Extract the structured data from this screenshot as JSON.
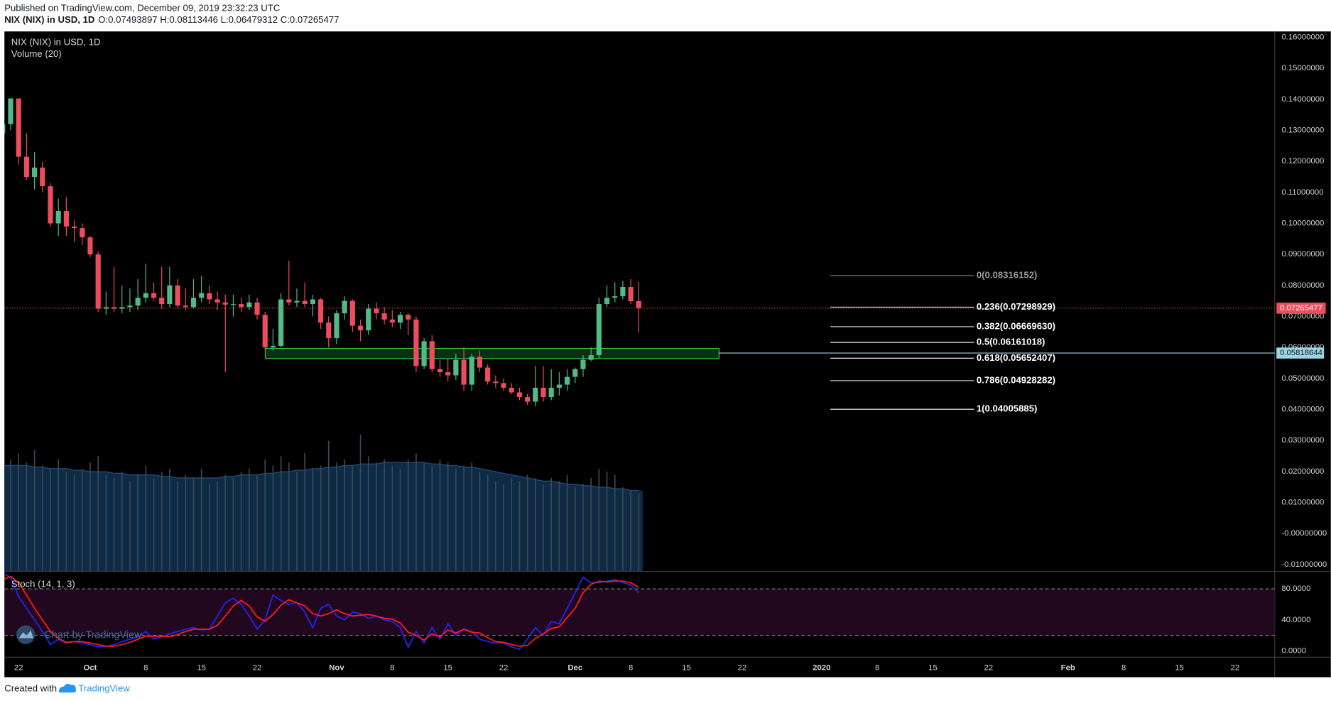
{
  "header": {
    "published": "Published on TradingView.com, December 09, 2019 23:32:23 UTC",
    "ohlc": "O:0.07493897 H:0.08113446 L:0.06479312 C:0.07265477"
  },
  "watermark": "Chart by TradingView",
  "footer": {
    "created": "Created with",
    "brand": "TradingView"
  },
  "chart_data": [
    {
      "type": "candlestick",
      "title": "NIX (NIX) in USD, 1D",
      "up_color": "#53b987",
      "down_color": "#eb4d5c",
      "x": [
        "2019-09-20",
        "2019-09-21",
        "2019-09-22",
        "2019-09-23",
        "2019-09-24",
        "2019-09-25",
        "2019-09-26",
        "2019-09-27",
        "2019-09-28",
        "2019-09-29",
        "2019-09-30",
        "2019-10-01",
        "2019-10-02",
        "2019-10-03",
        "2019-10-04",
        "2019-10-05",
        "2019-10-06",
        "2019-10-07",
        "2019-10-08",
        "2019-10-09",
        "2019-10-10",
        "2019-10-11",
        "2019-10-12",
        "2019-10-13",
        "2019-10-14",
        "2019-10-15",
        "2019-10-16",
        "2019-10-17",
        "2019-10-18",
        "2019-10-19",
        "2019-10-20",
        "2019-10-21",
        "2019-10-22",
        "2019-10-23",
        "2019-10-24",
        "2019-10-25",
        "2019-10-26",
        "2019-10-27",
        "2019-10-28",
        "2019-10-29",
        "2019-10-30",
        "2019-10-31",
        "2019-11-01",
        "2019-11-02",
        "2019-11-03",
        "2019-11-04",
        "2019-11-05",
        "2019-11-06",
        "2019-11-07",
        "2019-11-08",
        "2019-11-09",
        "2019-11-10",
        "2019-11-11",
        "2019-11-12",
        "2019-11-13",
        "2019-11-14",
        "2019-11-15",
        "2019-11-16",
        "2019-11-17",
        "2019-11-18",
        "2019-11-19",
        "2019-11-20",
        "2019-11-21",
        "2019-11-22",
        "2019-11-23",
        "2019-11-24",
        "2019-11-25",
        "2019-11-26",
        "2019-11-27",
        "2019-11-28",
        "2019-11-29",
        "2019-11-30",
        "2019-12-01",
        "2019-12-02",
        "2019-12-03",
        "2019-12-04",
        "2019-12-05",
        "2019-12-06",
        "2019-12-07",
        "2019-12-08",
        "2019-12-09"
      ],
      "open": [
        0.129,
        0.132,
        0.1403,
        0.1215,
        0.115,
        0.118,
        0.112,
        0.1,
        0.104,
        0.099,
        0.0985,
        0.0955,
        0.09,
        0.0725,
        0.073,
        0.0725,
        0.073,
        0.0735,
        0.076,
        0.0775,
        0.076,
        0.074,
        0.08,
        0.0735,
        0.073,
        0.076,
        0.0775,
        0.0755,
        0.0745,
        0.0738,
        0.074,
        0.073,
        0.0745,
        0.0705,
        0.06,
        0.0605,
        0.0755,
        0.0745,
        0.075,
        0.074,
        0.0755,
        0.068,
        0.063,
        0.071,
        0.075,
        0.067,
        0.0655,
        0.0725,
        0.071,
        0.069,
        0.068,
        0.0705,
        0.069,
        0.054,
        0.062,
        0.053,
        0.052,
        0.051,
        0.056,
        0.048,
        0.057,
        0.0535,
        0.049,
        0.0485,
        0.047,
        0.0455,
        0.044,
        0.0425,
        0.047,
        0.044,
        0.047,
        0.048,
        0.0505,
        0.053,
        0.056,
        0.0575,
        0.074,
        0.076,
        0.0765,
        0.0795,
        0.07493897
      ],
      "high": [
        0.1335,
        0.1403,
        0.1403,
        0.129,
        0.123,
        0.12,
        0.113,
        0.108,
        0.1085,
        0.101,
        0.1,
        0.096,
        0.091,
        0.078,
        0.086,
        0.08,
        0.079,
        0.082,
        0.087,
        0.081,
        0.086,
        0.086,
        0.082,
        0.079,
        0.082,
        0.083,
        0.08,
        0.078,
        0.077,
        0.077,
        0.076,
        0.077,
        0.076,
        0.0715,
        0.066,
        0.0775,
        0.088,
        0.079,
        0.081,
        0.077,
        0.076,
        0.07,
        0.072,
        0.0765,
        0.0755,
        0.069,
        0.074,
        0.0745,
        0.073,
        0.072,
        0.0715,
        0.071,
        0.07,
        0.063,
        0.064,
        0.056,
        0.0565,
        0.058,
        0.06,
        0.058,
        0.059,
        0.0545,
        0.051,
        0.05,
        0.0485,
        0.047,
        0.045,
        0.054,
        0.054,
        0.053,
        0.052,
        0.053,
        0.0535,
        0.0575,
        0.06,
        0.076,
        0.08,
        0.081,
        0.0815,
        0.082,
        0.08113446
      ],
      "low": [
        0.128,
        0.13,
        0.119,
        0.114,
        0.111,
        0.11,
        0.099,
        0.096,
        0.096,
        0.094,
        0.093,
        0.089,
        0.0715,
        0.0705,
        0.0715,
        0.071,
        0.0715,
        0.072,
        0.0745,
        0.075,
        0.0725,
        0.073,
        0.0725,
        0.072,
        0.0725,
        0.0745,
        0.074,
        0.072,
        0.052,
        0.07,
        0.0715,
        0.072,
        0.069,
        0.059,
        0.059,
        0.06,
        0.0735,
        0.073,
        0.073,
        0.07,
        0.066,
        0.06,
        0.061,
        0.069,
        0.065,
        0.062,
        0.064,
        0.069,
        0.0675,
        0.0665,
        0.066,
        0.064,
        0.052,
        0.053,
        0.052,
        0.0505,
        0.049,
        0.0495,
        0.046,
        0.046,
        0.052,
        0.048,
        0.047,
        0.046,
        0.045,
        0.043,
        0.0415,
        0.041,
        0.0425,
        0.043,
        0.0445,
        0.046,
        0.0485,
        0.0505,
        0.0555,
        0.0565,
        0.073,
        0.0745,
        0.0755,
        0.074,
        0.06479312
      ],
      "close": [
        0.132,
        0.1403,
        0.1215,
        0.115,
        0.118,
        0.112,
        0.1,
        0.104,
        0.099,
        0.0985,
        0.0955,
        0.09,
        0.0725,
        0.073,
        0.0725,
        0.073,
        0.0735,
        0.076,
        0.0775,
        0.076,
        0.074,
        0.08,
        0.0735,
        0.073,
        0.076,
        0.0775,
        0.0755,
        0.0745,
        0.0738,
        0.074,
        0.073,
        0.0745,
        0.0705,
        0.06,
        0.0605,
        0.0755,
        0.0745,
        0.075,
        0.074,
        0.0755,
        0.068,
        0.063,
        0.071,
        0.075,
        0.067,
        0.0655,
        0.0725,
        0.071,
        0.069,
        0.068,
        0.0705,
        0.069,
        0.054,
        0.062,
        0.053,
        0.052,
        0.051,
        0.056,
        0.048,
        0.057,
        0.0535,
        0.049,
        0.0485,
        0.047,
        0.0455,
        0.044,
        0.0425,
        0.047,
        0.044,
        0.047,
        0.048,
        0.0505,
        0.053,
        0.056,
        0.0575,
        0.074,
        0.076,
        0.0765,
        0.0795,
        0.0749,
        0.07265477
      ],
      "volume": {
        "name": "Volume (20)",
        "color": "#3a4857",
        "ma_color": "#0e2a45",
        "ma_line": "#1d4a72",
        "lim": [
          0,
          0.174
        ],
        "values": [
          0.034,
          0.036,
          0.038,
          0.035,
          0.039,
          0.034,
          0.033,
          0.036,
          0.032,
          0.031,
          0.033,
          0.035,
          0.037,
          0.031,
          0.03,
          0.032,
          0.029,
          0.031,
          0.034,
          0.03,
          0.032,
          0.033,
          0.029,
          0.031,
          0.03,
          0.033,
          0.028,
          0.029,
          0.031,
          0.03,
          0.032,
          0.033,
          0.031,
          0.036,
          0.034,
          0.037,
          0.035,
          0.032,
          0.038,
          0.033,
          0.034,
          0.042,
          0.035,
          0.036,
          0.034,
          0.044,
          0.037,
          0.035,
          0.036,
          0.034,
          0.033,
          0.036,
          0.038,
          0.035,
          0.034,
          0.036,
          0.035,
          0.033,
          0.034,
          0.035,
          0.032,
          0.031,
          0.029,
          0.028,
          0.03,
          0.029,
          0.031,
          0.03,
          0.028,
          0.03,
          0.029,
          0.031,
          0.027,
          0.028,
          0.03,
          0.033,
          0.032,
          0.031,
          0.027,
          0.026,
          0.025
        ],
        "ma": [
          0.034,
          0.034,
          0.034,
          0.034,
          0.0335,
          0.0335,
          0.033,
          0.033,
          0.033,
          0.0325,
          0.0325,
          0.032,
          0.032,
          0.032,
          0.0315,
          0.0315,
          0.031,
          0.031,
          0.031,
          0.031,
          0.0305,
          0.0305,
          0.03,
          0.03,
          0.03,
          0.03,
          0.03,
          0.03,
          0.0305,
          0.0305,
          0.031,
          0.031,
          0.031,
          0.0315,
          0.0315,
          0.032,
          0.032,
          0.0325,
          0.0325,
          0.033,
          0.033,
          0.0335,
          0.0335,
          0.034,
          0.034,
          0.0345,
          0.0345,
          0.0345,
          0.035,
          0.035,
          0.035,
          0.035,
          0.035,
          0.035,
          0.0345,
          0.0345,
          0.034,
          0.034,
          0.0335,
          0.0335,
          0.033,
          0.0325,
          0.032,
          0.0315,
          0.031,
          0.0305,
          0.03,
          0.0295,
          0.029,
          0.029,
          0.0285,
          0.028,
          0.028,
          0.0275,
          0.0275,
          0.027,
          0.027,
          0.0265,
          0.0265,
          0.026,
          0.026
        ]
      },
      "last_price": 0.07265477,
      "last_color": "#eb4d5c",
      "level": 0.05818644,
      "level_color": "#9fd3e3",
      "zone": [
        0.0564,
        0.0597
      ],
      "zone_color": "#1f8a2e",
      "fib_levels": [
        {
          "value": 0.08316152,
          "label": "0(0.08316152)"
        },
        {
          "value": 0.07298929,
          "label": "0.236(0.07298929)"
        },
        {
          "value": 0.0666963,
          "label": "0.382(0.06669630)"
        },
        {
          "value": 0.06161018,
          "label": "0.5(0.06161018)"
        },
        {
          "value": 0.05652407,
          "label": "0.618(0.05652407)"
        },
        {
          "value": 0.04928282,
          "label": "0.786(0.04928282)"
        },
        {
          "value": 0.04005885,
          "label": "1(0.04005885)"
        }
      ],
      "ylim": [
        -0.0121,
        0.1619
      ],
      "yticks": [
        {
          "value": 0.16,
          "label": "0.16000000"
        },
        {
          "value": 0.15,
          "label": "0.15000000"
        },
        {
          "value": 0.14,
          "label": "0.14000000"
        },
        {
          "value": 0.13,
          "label": "0.13000000"
        },
        {
          "value": 0.12,
          "label": "0.12000000"
        },
        {
          "value": 0.11,
          "label": "0.11000000"
        },
        {
          "value": 0.1,
          "label": "0.10000000"
        },
        {
          "value": 0.09,
          "label": "0.09000000"
        },
        {
          "value": 0.08,
          "label": "0.08000000"
        },
        {
          "value": 0.07,
          "label": "0.07000000"
        },
        {
          "value": 0.06,
          "label": "0.06000000"
        },
        {
          "value": 0.05,
          "label": "0.05000000"
        },
        {
          "value": 0.04,
          "label": "0.04000000"
        },
        {
          "value": 0.03,
          "label": "0.03000000"
        },
        {
          "value": 0.02,
          "label": "0.02000000"
        },
        {
          "value": 0.01,
          "label": "0.01000000"
        },
        {
          "value": 0,
          "label": "-0.00000000"
        },
        {
          "value": -0.01,
          "label": "-0.01000000"
        }
      ],
      "xlim": [
        "2019-09-20",
        "2020-02-27"
      ],
      "xticks": [
        {
          "value": "2019-09-22",
          "label": "22"
        },
        {
          "value": "2019-10-01",
          "label": "Oct"
        },
        {
          "value": "2019-10-08",
          "label": "8"
        },
        {
          "value": "2019-10-15",
          "label": "15"
        },
        {
          "value": "2019-10-22",
          "label": "22"
        },
        {
          "value": "2019-11-01",
          "label": "Nov"
        },
        {
          "value": "2019-11-08",
          "label": "8"
        },
        {
          "value": "2019-11-15",
          "label": "15"
        },
        {
          "value": "2019-11-22",
          "label": "22"
        },
        {
          "value": "2019-12-01",
          "label": "Dec"
        },
        {
          "value": "2019-12-08",
          "label": "8"
        },
        {
          "value": "2019-12-15",
          "label": "15"
        },
        {
          "value": "2019-12-22",
          "label": "22"
        },
        {
          "value": "2020-01-01",
          "label": "2020"
        },
        {
          "value": "2020-01-08",
          "label": "8"
        },
        {
          "value": "2020-01-15",
          "label": "15"
        },
        {
          "value": "2020-01-22",
          "label": "22"
        },
        {
          "value": "2020-02-01",
          "label": "Feb"
        },
        {
          "value": "2020-02-08",
          "label": "8"
        },
        {
          "value": "2020-02-15",
          "label": "15"
        },
        {
          "value": "2020-02-22",
          "label": "22"
        }
      ],
      "grid": false
    },
    {
      "type": "line",
      "title": "Stoch (14, 1, 3)",
      "band_color": "#22081f",
      "series": [
        {
          "color": "#2424f2",
          "values": [
            100,
            95,
            70,
            55,
            40,
            25,
            8,
            15,
            10,
            12,
            10,
            8,
            5,
            6,
            8,
            12,
            15,
            18,
            25,
            15,
            18,
            22,
            25,
            28,
            30,
            27,
            28,
            45,
            62,
            68,
            60,
            45,
            28,
            40,
            72,
            65,
            60,
            62,
            50,
            30,
            55,
            60,
            45,
            40,
            50,
            48,
            42,
            45,
            40,
            38,
            30,
            5,
            25,
            10,
            30,
            15,
            35,
            20,
            28,
            25,
            15,
            12,
            10,
            10,
            5,
            2,
            15,
            30,
            20,
            38,
            35,
            55,
            75,
            95,
            88,
            88,
            90,
            92,
            88,
            85,
            75
          ]
        },
        {
          "color": "#ff1a1a",
          "values": [
            92,
            96,
            88,
            72,
            55,
            40,
            25,
            16,
            11,
            12,
            12,
            10,
            8,
            6,
            6,
            8,
            11,
            15,
            19,
            19,
            19,
            18,
            21,
            25,
            28,
            28,
            28,
            33,
            45,
            58,
            65,
            58,
            44,
            38,
            47,
            59,
            66,
            62,
            58,
            48,
            45,
            48,
            53,
            48,
            45,
            46,
            47,
            45,
            42,
            41,
            36,
            24,
            20,
            14,
            22,
            18,
            27,
            23,
            28,
            24,
            23,
            17,
            12,
            11,
            8,
            6,
            7,
            16,
            22,
            29,
            31,
            43,
            55,
            75,
            86,
            90,
            89,
            90,
            90,
            88,
            82
          ]
        }
      ],
      "bands": [
        20,
        80
      ],
      "ylim": [
        -7.7,
        102
      ],
      "yticks": [
        {
          "value": 80,
          "label": "80.0000"
        },
        {
          "value": 40,
          "label": "40.0000"
        },
        {
          "value": 0,
          "label": "0.0000"
        }
      ]
    }
  ]
}
